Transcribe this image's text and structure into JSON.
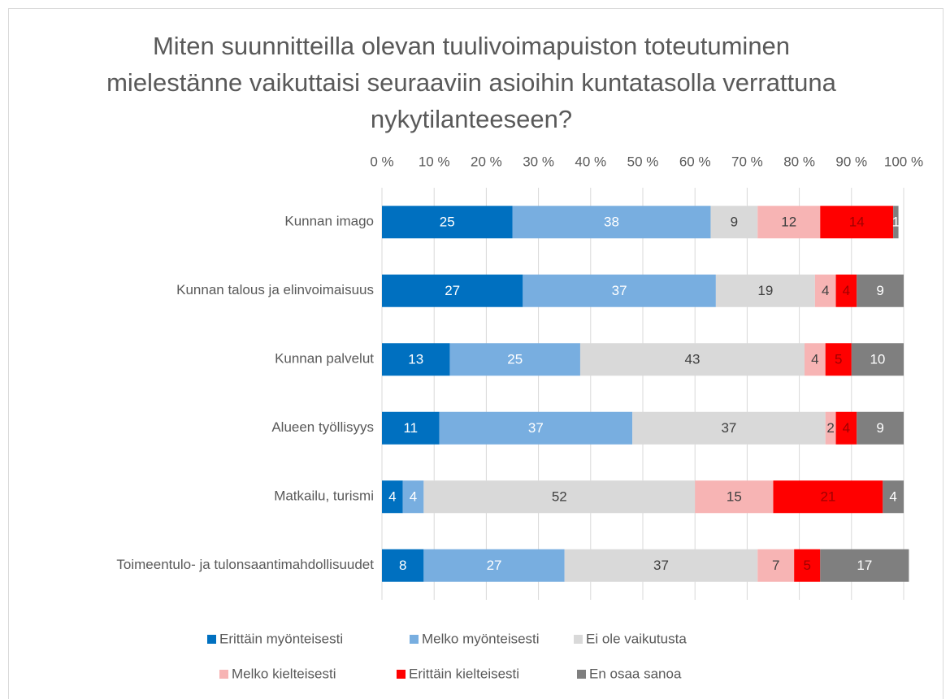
{
  "chart_data": {
    "type": "stacked_bar_horizontal",
    "title": "Miten suunnitteilla olevan tuulivoimapuiston toteutuminen mielestänne vaikuttaisi seuraaviin asioihin kuntatasolla verrattuna nykytilanteeseen?",
    "categories": [
      "Kunnan imago",
      "Kunnan talous ja elinvoimaisuus",
      "Kunnan palvelut",
      "Alueen työllisyys",
      "Matkailu, turismi",
      "Toimeentulo- ja tulonsaantimahdollisuudet"
    ],
    "series": [
      {
        "name": "Erittäin myönteisesti",
        "color": "#0070c0",
        "values": [
          25,
          27,
          13,
          11,
          4,
          8
        ]
      },
      {
        "name": "Melko myönteisesti",
        "color": "#78aee0",
        "values": [
          38,
          37,
          25,
          37,
          4,
          27
        ]
      },
      {
        "name": "Ei ole vaikutusta",
        "color": "#d9d9d9",
        "values": [
          9,
          19,
          43,
          37,
          52,
          37
        ]
      },
      {
        "name": "Melko kielteisesti",
        "color": "#f7b4b4",
        "values": [
          12,
          4,
          4,
          2,
          15,
          7
        ]
      },
      {
        "name": "Erittäin kielteisesti",
        "color": "#ff0000",
        "values": [
          14,
          4,
          5,
          4,
          21,
          5
        ]
      },
      {
        "name": "En osaa sanoa",
        "color": "#7f7f7f",
        "values": [
          1,
          9,
          10,
          9,
          4,
          17
        ]
      }
    ],
    "xlim": [
      0,
      100
    ],
    "xticks": [
      {
        "value": 0,
        "label": "0 %"
      },
      {
        "value": 10,
        "label": "10 %"
      },
      {
        "value": 20,
        "label": "20 %"
      },
      {
        "value": 30,
        "label": "30 %"
      },
      {
        "value": 40,
        "label": "40 %"
      },
      {
        "value": 50,
        "label": "50 %"
      },
      {
        "value": 60,
        "label": "60 %"
      },
      {
        "value": 70,
        "label": "70 %"
      },
      {
        "value": 80,
        "label": "80 %"
      },
      {
        "value": 90,
        "label": "90 %"
      },
      {
        "value": 100,
        "label": "100 %"
      }
    ],
    "grid": true,
    "legend": "bottom"
  }
}
